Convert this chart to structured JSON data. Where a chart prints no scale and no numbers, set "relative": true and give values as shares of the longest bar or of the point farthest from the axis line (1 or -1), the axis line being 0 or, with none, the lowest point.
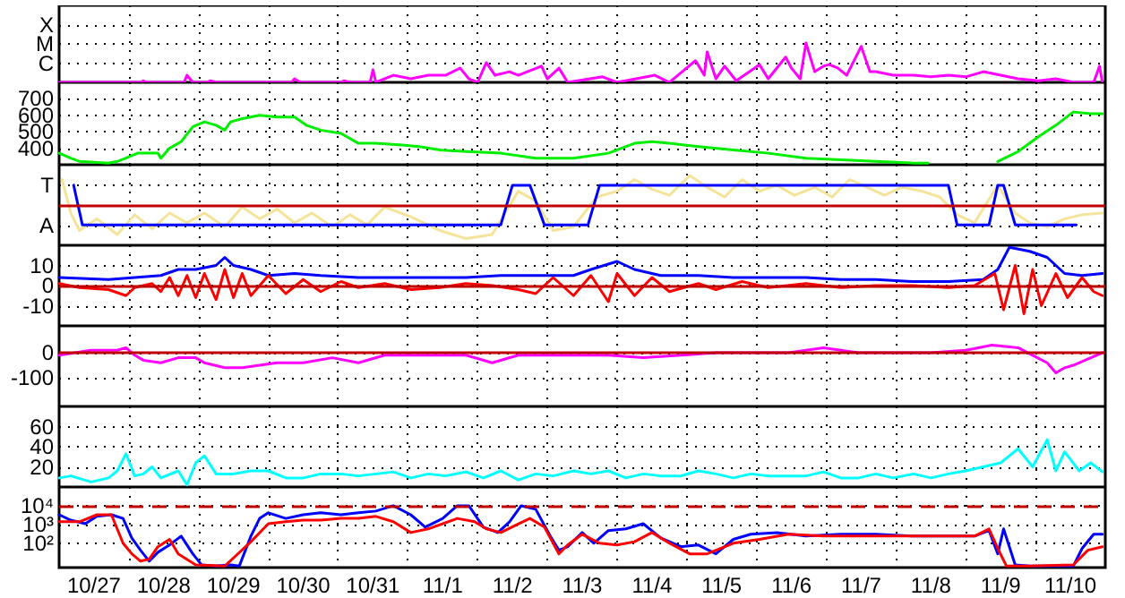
{
  "chart_data": [
    {
      "type": "line",
      "relative": true,
      "xlim": [
        "--10-27",
        "--11-11"
      ],
      "grid": true,
      "marker": "none",
      "tick_labels": "y",
      "xticks": [
        {
          "value": "--10-28",
          "label": null
        },
        {
          "value": "--10-29",
          "label": null
        },
        {
          "value": "--10-30",
          "label": null
        },
        {
          "value": "--10-31",
          "label": null
        },
        {
          "value": "--11-01",
          "label": null
        },
        {
          "value": "--11-02",
          "label": null
        },
        {
          "value": "--11-03",
          "label": null
        },
        {
          "value": "--11-04",
          "label": null
        },
        {
          "value": "--11-05",
          "label": null
        },
        {
          "value": "--11-06",
          "label": null
        },
        {
          "value": "--11-07",
          "label": null
        },
        {
          "value": "--11-08",
          "label": null
        },
        {
          "value": "--11-09",
          "label": null
        },
        {
          "value": "--11-10",
          "label": null
        }
      ],
      "annotations": [
        "C",
        "M",
        "X"
      ],
      "series": [
        {
          "color": "#ff00ff",
          "x": [
            "--10-27T00:00",
            "--10-28T04:00",
            "--10-28T05:00",
            "--10-28T06:00",
            "--10-28T19:00",
            "--10-28T20:00",
            "--10-28T22:00",
            "--10-29T03:00",
            "--10-29T04:00",
            "--10-29T06:00",
            "--10-30T08:00",
            "--10-30T09:00",
            "--10-30T11:00",
            "--10-31T01:00",
            "--10-31T02:00",
            "--10-31T04:00",
            "--10-31T11:00",
            "--10-31T12:00",
            "--10-31T13:00",
            "--10-31T19:00",
            "--11-01T01:00",
            "--11-01T07:00",
            "--11-01T13:00",
            "--11-01T18:00",
            "--11-01T21:00",
            "--11-02T00:00",
            "--11-02T03:00",
            "--11-02T06:00",
            "--11-02T11:00",
            "--11-02T14:00",
            "--11-02T22:00",
            "--11-03T00:00",
            "--11-03T04:00",
            "--11-03T07:00",
            "--11-03T19:00",
            "--11-04T00:00",
            "--11-04T13:00",
            "--11-04T18:00",
            "--11-05T03:00",
            "--11-05T06:00",
            "--11-05T07:00",
            "--11-05T10:00",
            "--11-05T13:00",
            "--11-05T17:00",
            "--11-06T01:00",
            "--11-06T04:00",
            "--11-06T10:00",
            "--11-06T12:00",
            "--11-06T15:00",
            "--11-06T17:00",
            "--11-06T20:00",
            "--11-06T23:00",
            "--11-07T01:00",
            "--11-07T04:00",
            "--11-07T07:00",
            "--11-07T12:00",
            "--11-07T15:00",
            "--11-07T17:00",
            "--11-07T23:00",
            "--11-08T06:00",
            "--11-08T12:00",
            "--11-08T18:00",
            "--11-09T00:00",
            "--11-09T06:00",
            "--11-09T12:00",
            "--11-09T18:00",
            "--11-10T01:00",
            "--11-10T07:00",
            "--11-10T13:00",
            "--11-10T20:00",
            "--11-10T22:00",
            "--11-10T23:00"
          ],
          "values": [
            0,
            0,
            0.04,
            0,
            0,
            0.18,
            0,
            0,
            0.04,
            0,
            0,
            0.09,
            0,
            0,
            0.04,
            0,
            0,
            0.32,
            0,
            0.18,
            0.09,
            0.18,
            0.18,
            0.36,
            0.09,
            0,
            0.5,
            0.18,
            0.27,
            0.18,
            0.41,
            0.09,
            0.36,
            0,
            0.14,
            0,
            0.18,
            0,
            0.55,
            0.18,
            0.77,
            0.09,
            0.41,
            0.04,
            0.45,
            0.09,
            0.64,
            0.36,
            0.09,
            1,
            0.27,
            0.41,
            0.45,
            0.36,
            0.18,
            0.91,
            0.27,
            0.27,
            0.18,
            0.18,
            0.14,
            0.18,
            0.14,
            0.27,
            0.18,
            0.09,
            0.04,
            0.09,
            0,
            0,
            0.41,
            0
          ]
        }
      ]
    },
    {
      "type": "line",
      "xlim": [
        "--10-27",
        "--11-11"
      ],
      "ylim": [
        300,
        800
      ],
      "grid": true,
      "marker": "none",
      "tick_labels": "y",
      "xticks": [
        {
          "value": "--10-28",
          "label": null
        },
        {
          "value": "--10-29",
          "label": null
        },
        {
          "value": "--10-30",
          "label": null
        },
        {
          "value": "--10-31",
          "label": null
        },
        {
          "value": "--11-01",
          "label": null
        },
        {
          "value": "--11-02",
          "label": null
        },
        {
          "value": "--11-03",
          "label": null
        },
        {
          "value": "--11-04",
          "label": null
        },
        {
          "value": "--11-05",
          "label": null
        },
        {
          "value": "--11-06",
          "label": null
        },
        {
          "value": "--11-07",
          "label": null
        },
        {
          "value": "--11-08",
          "label": null
        },
        {
          "value": "--11-09",
          "label": null
        },
        {
          "value": "--11-10",
          "label": null
        }
      ],
      "yticks": [
        400,
        500,
        600,
        700
      ],
      "series": [
        {
          "color": "#00ee00",
          "x": [
            "--10-27T00:00",
            "--10-27T04:00",
            "--10-27T07:00",
            "--10-27T17:00",
            "--10-27T20:00",
            "--10-27T23:00",
            "--10-28T03:00",
            "--10-28T10:00",
            "--10-28T11:00",
            "--10-28T14:00",
            "--10-28T18:00",
            "--10-28T22:00",
            "--10-29T02:00",
            "--10-29T06:00",
            "--10-29T09:00",
            "--10-29T11:00",
            "--10-29T15:00",
            "--10-29T21:00",
            "--10-30T03:00",
            "--10-30T09:00",
            "--10-30T13:00",
            "--10-30T18:00",
            "--10-31T01:00",
            "--10-31T07:00",
            "--10-31T13:00",
            "--10-31T22:00",
            "--11-01T04:00",
            "--11-01T11:00",
            "--11-01T20:00",
            "--11-02T08:00",
            "--11-02T20:00",
            "--11-03T09:00",
            "--11-03T21:00",
            "--11-04T06:00",
            "--11-04T12:00",
            "--11-04T18:00",
            "--11-05T04:00",
            "--11-05T16:00",
            "--11-06T04:00",
            "--11-06T17:00",
            "--11-07T05:00",
            "--11-07T17:00",
            "--11-08T06:00",
            "--11-08T11:00",
            "--11-08T23:00",
            "--11-09T11:00",
            "--11-09T18:00",
            "--11-10T01:00",
            "--11-10T07:00",
            "--11-10T13:00",
            "--11-10T19:00",
            "--11-10T23:00"
          ],
          "values": [
            370,
            340,
            320,
            310,
            320,
            340,
            370,
            370,
            340,
            400,
            440,
            530,
            560,
            540,
            510,
            560,
            580,
            600,
            590,
            590,
            540,
            510,
            490,
            430,
            430,
            420,
            410,
            390,
            380,
            370,
            340,
            340,
            370,
            430,
            440,
            430,
            410,
            390,
            370,
            340,
            330,
            320,
            310,
            310,
            null,
            320,
            380,
            470,
            540,
            620,
            610,
            610
          ]
        }
      ]
    },
    {
      "type": "line",
      "relative": true,
      "xlim": [
        "--10-27",
        "--11-11"
      ],
      "grid": true,
      "marker": "none",
      "tick_labels": "y",
      "xticks": [
        {
          "value": "--10-28",
          "label": null
        },
        {
          "value": "--10-29",
          "label": null
        },
        {
          "value": "--10-30",
          "label": null
        },
        {
          "value": "--10-31",
          "label": null
        },
        {
          "value": "--11-01",
          "label": null
        },
        {
          "value": "--11-02",
          "label": null
        },
        {
          "value": "--11-03",
          "label": null
        },
        {
          "value": "--11-04",
          "label": null
        },
        {
          "value": "--11-05",
          "label": null
        },
        {
          "value": "--11-06",
          "label": null
        },
        {
          "value": "--11-07",
          "label": null
        },
        {
          "value": "--11-08",
          "label": null
        },
        {
          "value": "--11-09",
          "label": null
        },
        {
          "value": "--11-10",
          "label": null
        }
      ],
      "annotations": [
        "A",
        "T"
      ],
      "ref_lines": [
        {
          "axis": "y",
          "value": 0,
          "color": "#c00000"
        }
      ],
      "series": [
        {
          "color": "#f5e39a",
          "x": [
            "--10-27T01:00",
            "--10-27T04:00",
            "--10-27T07:00",
            "--10-27T13:00",
            "--10-27T20:00",
            "--10-28T02:00",
            "--10-28T08:00",
            "--10-28T14:00",
            "--10-28T20:00",
            "--10-29T02:00",
            "--10-29T09:00",
            "--10-29T15:00",
            "--10-29T21:00",
            "--10-30T03:00",
            "--10-30T09:00",
            "--10-30T15:00",
            "--10-30T22:00",
            "--10-31T04:00",
            "--10-31T10:00",
            "--10-31T16:00",
            "--11-01T01:00",
            "--11-01T11:00",
            "--11-01T20:00",
            "--11-02T05:00",
            "--11-02T14:00",
            "--11-02T20:00",
            "--11-03T02:00",
            "--11-03T09:00",
            "--11-03T17:00",
            "--11-04T00:00",
            "--11-04T06:00",
            "--11-04T12:00",
            "--11-04T18:00",
            "--11-05T01:00",
            "--11-05T07:00",
            "--11-05T13:00",
            "--11-05T19:00",
            "--11-06T01:00",
            "--11-06T07:00",
            "--11-06T13:00",
            "--11-06T20:00",
            "--11-07T02:00",
            "--11-07T08:00",
            "--11-07T14:00",
            "--11-07T20:00",
            "--11-08T02:00",
            "--11-08T09:00",
            "--11-08T15:00",
            "--11-08T21:00",
            "--11-09T03:00",
            "--11-09T11:00",
            "--11-09T17:00",
            "--11-09T22:00",
            "--11-10T04:00",
            "--11-10T10:00",
            "--11-10T16:00",
            "--11-10T23:00"
          ],
          "values": [
            0.76,
            -0.24,
            -0.76,
            -0.41,
            -0.88,
            -0.29,
            -0.71,
            -0.24,
            -0.53,
            -0.24,
            -0.65,
            -0.06,
            -0.41,
            -0.12,
            -0.53,
            -0.24,
            -0.65,
            -0.29,
            -0.59,
            -0.06,
            -0.35,
            -0.76,
            -1,
            -0.88,
            0.41,
            0.12,
            -0.76,
            -0.65,
            0.24,
            0.41,
            0.76,
            0.47,
            0.29,
            0.88,
            0.53,
            0.24,
            0.76,
            0.41,
            0.59,
            0.29,
            0.53,
            0.24,
            0.76,
            0.53,
            0.29,
            0.53,
            0.41,
            0.24,
            -0.29,
            -0.53,
            0.59,
            -0.24,
            -0.53,
            -0.65,
            -0.41,
            -0.29,
            -0.24
          ]
        },
        {
          "color": "#0000ff",
          "x": [
            "--10-27T05:00",
            "--10-27T08:00",
            "--11-02T08:00",
            "--11-02T12:00",
            "--11-02T18:00",
            "--11-02T23:00",
            "--11-03T14:00",
            "--11-03T18:00",
            "--11-08T18:00",
            "--11-08T21:00",
            "--11-09T08:00",
            "--11-09T11:00",
            "--11-09T13:00",
            "--11-09T17:00",
            "--11-10T14:00"
          ],
          "values": [
            0.59,
            -0.59,
            -0.59,
            0.59,
            0.59,
            -0.59,
            -0.59,
            0.59,
            0.59,
            -0.59,
            -0.59,
            0.59,
            0.59,
            -0.59,
            -0.59
          ]
        }
      ]
    },
    {
      "type": "line",
      "xlim": [
        "--10-27",
        "--11-11"
      ],
      "ylim": [
        -20,
        20
      ],
      "grid": true,
      "marker": "none",
      "tick_labels": "y",
      "xticks": [
        {
          "value": "--10-28",
          "label": null
        },
        {
          "value": "--10-29",
          "label": null
        },
        {
          "value": "--10-30",
          "label": null
        },
        {
          "value": "--10-31",
          "label": null
        },
        {
          "value": "--11-01",
          "label": null
        },
        {
          "value": "--11-02",
          "label": null
        },
        {
          "value": "--11-03",
          "label": null
        },
        {
          "value": "--11-04",
          "label": null
        },
        {
          "value": "--11-05",
          "label": null
        },
        {
          "value": "--11-06",
          "label": null
        },
        {
          "value": "--11-07",
          "label": null
        },
        {
          "value": "--11-08",
          "label": null
        },
        {
          "value": "--11-09",
          "label": null
        },
        {
          "value": "--11-10",
          "label": null
        }
      ],
      "yticks": [
        -10,
        0,
        10
      ],
      "ref_lines": [
        {
          "axis": "y",
          "value": 0,
          "color": "#c00000"
        }
      ],
      "series": [
        {
          "color": "#0000ff",
          "x": [
            "--10-27T00:00",
            "--10-27T17:00",
            "--10-28T11:00",
            "--10-28T17:00",
            "--10-28T23:00",
            "--10-29T06:00",
            "--10-29T09:00",
            "--10-29T12:00",
            "--10-29T18:00",
            "--10-30T00:00",
            "--10-30T09:00",
            "--10-30T18:00",
            "--10-31T07:00",
            "--10-31T19:00",
            "--11-01T07:00",
            "--11-01T20:00",
            "--11-02T08:00",
            "--11-02T20:00",
            "--11-03T09:00",
            "--11-03T15:00",
            "--11-04T00:00",
            "--11-04T06:00",
            "--11-04T15:00",
            "--11-05T04:00",
            "--11-05T16:00",
            "--11-06T04:00",
            "--11-06T17:00",
            "--11-07T05:00",
            "--11-07T17:00",
            "--11-08T06:00",
            "--11-08T18:00",
            "--11-09T06:00",
            "--11-09T11:00",
            "--11-09T15:00",
            "--11-09T22:00",
            "--11-10T04:00",
            "--11-10T10:00",
            "--11-10T16:00",
            "--11-10T23:00"
          ],
          "values": [
            4,
            3,
            5,
            8,
            8,
            10,
            14,
            10,
            8,
            5,
            6,
            5,
            4,
            4,
            4,
            4,
            5,
            5,
            5,
            8,
            12,
            8,
            5,
            5,
            4,
            4,
            4,
            3,
            3,
            2,
            2,
            3,
            8,
            19,
            17,
            14,
            6,
            5,
            6
          ]
        },
        {
          "color": "#ff0000",
          "x": [
            "--10-27T00:00",
            "--10-27T07:00",
            "--10-27T17:00",
            "--10-27T23:00",
            "--10-28T02:00",
            "--10-28T08:00",
            "--10-28T11:00",
            "--10-28T14:00",
            "--10-28T17:00",
            "--10-28T20:00",
            "--10-28T23:00",
            "--10-29T02:00",
            "--10-29T06:00",
            "--10-29T09:00",
            "--10-29T12:00",
            "--10-29T15:00",
            "--10-29T18:00",
            "--10-30T00:00",
            "--10-30T06:00",
            "--10-30T12:00",
            "--10-30T18:00",
            "--10-31T01:00",
            "--10-31T07:00",
            "--10-31T16:00",
            "--11-01T01:00",
            "--11-01T11:00",
            "--11-01T20:00",
            "--11-02T05:00",
            "--11-02T14:00",
            "--11-02T20:00",
            "--11-03T02:00",
            "--11-03T09:00",
            "--11-03T15:00",
            "--11-03T21:00",
            "--11-04T00:00",
            "--11-04T06:00",
            "--11-04T12:00",
            "--11-04T18:00",
            "--11-05T04:00",
            "--11-05T10:00",
            "--11-05T19:00",
            "--11-06T04:00",
            "--11-06T17:00",
            "--11-07T05:00",
            "--11-07T17:00",
            "--11-08T06:00",
            "--11-08T18:00",
            "--11-09T03:00",
            "--11-09T10:00",
            "--11-09T13:00",
            "--11-09T17:00",
            "--11-09T20:00",
            "--11-09T23:00",
            "--11-10T02:00",
            "--11-10T07:00",
            "--11-10T11:00",
            "--11-10T16:00",
            "--11-10T20:00",
            "--11-10T23:00"
          ],
          "values": [
            1,
            -1,
            -2,
            -5,
            -1,
            1,
            -3,
            4,
            -5,
            5,
            -6,
            6,
            -7,
            8,
            -6,
            6,
            -5,
            5,
            -4,
            3,
            -3,
            2,
            -1,
            1,
            -2,
            -1,
            1,
            0,
            -2,
            -4,
            4,
            -5,
            5,
            -8,
            6,
            -5,
            4,
            -3,
            1,
            -2,
            2,
            -1,
            1,
            -1,
            0,
            0,
            -1,
            0,
            6,
            -12,
            10,
            -14,
            8,
            -10,
            6,
            -6,
            4,
            -3,
            -5
          ]
        }
      ]
    },
    {
      "type": "line",
      "xlim": [
        "--10-27",
        "--11-11"
      ],
      "ylim": [
        -214,
        107
      ],
      "grid": true,
      "marker": "none",
      "tick_labels": "y",
      "xticks": [
        {
          "value": "--10-28",
          "label": null
        },
        {
          "value": "--10-29",
          "label": null
        },
        {
          "value": "--10-30",
          "label": null
        },
        {
          "value": "--10-31",
          "label": null
        },
        {
          "value": "--11-01",
          "label": null
        },
        {
          "value": "--11-02",
          "label": null
        },
        {
          "value": "--11-03",
          "label": null
        },
        {
          "value": "--11-04",
          "label": null
        },
        {
          "value": "--11-05",
          "label": null
        },
        {
          "value": "--11-06",
          "label": null
        },
        {
          "value": "--11-07",
          "label": null
        },
        {
          "value": "--11-08",
          "label": null
        },
        {
          "value": "--11-09",
          "label": null
        },
        {
          "value": "--11-10",
          "label": null
        }
      ],
      "yticks": [
        -100,
        0
      ],
      "ref_lines": [
        {
          "axis": "y",
          "value": 0,
          "color": "#c00000"
        }
      ],
      "series": [
        {
          "color": "#ff00ff",
          "x": [
            "--10-27T00:00",
            "--10-27T11:00",
            "--10-27T20:00",
            "--10-27T23:00",
            "--10-28T02:00",
            "--10-28T05:00",
            "--10-28T11:00",
            "--10-28T17:00",
            "--10-28T23:00",
            "--10-29T02:00",
            "--10-29T09:00",
            "--10-29T15:00",
            "--10-29T21:00",
            "--10-30T03:00",
            "--10-30T12:00",
            "--10-30T22:00",
            "--10-31T07:00",
            "--10-31T16:00",
            "--11-01T01:00",
            "--11-01T11:00",
            "--11-01T20:00",
            "--11-02T05:00",
            "--11-02T14:00",
            "--11-02T23:00",
            "--11-03T09:00",
            "--11-03T21:00",
            "--11-04T09:00",
            "--11-04T22:00",
            "--11-05T10:00",
            "--11-05T22:00",
            "--11-06T11:00",
            "--11-06T23:00",
            "--11-07T11:00",
            "--11-07T23:00",
            "--11-08T12:00",
            "--11-09T00:00",
            "--11-09T09:00",
            "--11-09T18:00",
            "--11-09T23:00",
            "--11-10T04:00",
            "--11-10T07:00",
            "--11-10T10:00",
            "--11-10T13:00",
            "--11-10T19:00",
            "--11-10T23:00"
          ],
          "values": [
            -10,
            10,
            10,
            20,
            -10,
            -30,
            -40,
            -20,
            -20,
            -40,
            -60,
            -60,
            -50,
            -40,
            -40,
            -20,
            -40,
            -10,
            -10,
            -10,
            -10,
            -40,
            -10,
            -10,
            -10,
            -10,
            -20,
            -10,
            0,
            0,
            0,
            20,
            0,
            0,
            0,
            10,
            30,
            20,
            -10,
            -40,
            -80,
            -60,
            -50,
            -20,
            0
          ]
        }
      ]
    },
    {
      "type": "line",
      "xlim": [
        "--10-27",
        "--11-11"
      ],
      "ylim": [
        0,
        80
      ],
      "grid": true,
      "marker": "none",
      "tick_labels": "y",
      "xticks": [
        {
          "value": "--10-28",
          "label": null
        },
        {
          "value": "--10-29",
          "label": null
        },
        {
          "value": "--10-30",
          "label": null
        },
        {
          "value": "--10-31",
          "label": null
        },
        {
          "value": "--11-01",
          "label": null
        },
        {
          "value": "--11-02",
          "label": null
        },
        {
          "value": "--11-03",
          "label": null
        },
        {
          "value": "--11-04",
          "label": null
        },
        {
          "value": "--11-05",
          "label": null
        },
        {
          "value": "--11-06",
          "label": null
        },
        {
          "value": "--11-07",
          "label": null
        },
        {
          "value": "--11-08",
          "label": null
        },
        {
          "value": "--11-09",
          "label": null
        },
        {
          "value": "--11-10",
          "label": null
        }
      ],
      "yticks": [
        20,
        40,
        60
      ],
      "series": [
        {
          "color": "#00ffff",
          "x": [
            "--10-27T00:00",
            "--10-27T04:00",
            "--10-27T11:00",
            "--10-27T17:00",
            "--10-27T20:00",
            "--10-27T23:00",
            "--10-28T02:00",
            "--10-28T05:00",
            "--10-28T08:00",
            "--10-28T11:00",
            "--10-28T17:00",
            "--10-28T20:00",
            "--10-28T23:00",
            "--10-29T02:00",
            "--10-29T06:00",
            "--10-29T12:00",
            "--10-29T18:00",
            "--10-30T00:00",
            "--10-30T06:00",
            "--10-30T12:00",
            "--10-30T18:00",
            "--10-31T01:00",
            "--10-31T07:00",
            "--10-31T13:00",
            "--10-31T19:00",
            "--11-01T01:00",
            "--11-01T07:00",
            "--11-01T13:00",
            "--11-01T20:00",
            "--11-02T02:00",
            "--11-02T08:00",
            "--11-02T14:00",
            "--11-02T20:00",
            "--11-03T02:00",
            "--11-03T09:00",
            "--11-03T15:00",
            "--11-03T21:00",
            "--11-04T03:00",
            "--11-04T09:00",
            "--11-04T15:00",
            "--11-04T22:00",
            "--11-05T04:00",
            "--11-05T10:00",
            "--11-05T16:00",
            "--11-05T22:00",
            "--11-06T04:00",
            "--11-06T11:00",
            "--11-06T17:00",
            "--11-06T23:00",
            "--11-07T05:00",
            "--11-07T11:00",
            "--11-07T17:00",
            "--11-07T23:00",
            "--11-08T06:00",
            "--11-08T12:00",
            "--11-08T18:00",
            "--11-09T00:00",
            "--11-09T06:00",
            "--11-09T12:00",
            "--11-09T18:00",
            "--11-09T23:00",
            "--11-10T04:00",
            "--11-10T07:00",
            "--11-10T10:00",
            "--11-10T15:00",
            "--11-10T19:00",
            "--11-10T23:00"
          ],
          "values": [
            9,
            11,
            5,
            9,
            16,
            33,
            11,
            13,
            20,
            9,
            16,
            2,
            24,
            31,
            13,
            13,
            16,
            16,
            9,
            9,
            13,
            13,
            11,
            13,
            15,
            9,
            13,
            11,
            15,
            9,
            16,
            7,
            13,
            11,
            16,
            13,
            16,
            9,
            13,
            11,
            11,
            16,
            13,
            9,
            13,
            11,
            11,
            11,
            15,
            9,
            9,
            13,
            9,
            13,
            9,
            13,
            16,
            20,
            24,
            38,
            20,
            47,
            16,
            35,
            16,
            24,
            15
          ]
        }
      ]
    },
    {
      "type": "line",
      "xlim": [
        "--10-27",
        "--11-11"
      ],
      "ylim": [
        5,
        100000
      ],
      "log": "y",
      "grid": true,
      "marker": "none",
      "xticks": [
        {
          "value": "--10-27T12:00",
          "label": "10/27"
        },
        {
          "value": "--10-28",
          "label": null
        },
        {
          "value": "--10-28T12:00",
          "label": "10/28"
        },
        {
          "value": "--10-29",
          "label": null
        },
        {
          "value": "--10-29T12:00",
          "label": "10/29"
        },
        {
          "value": "--10-30",
          "label": null
        },
        {
          "value": "--10-30T12:00",
          "label": "10/30"
        },
        {
          "value": "--10-31",
          "label": null
        },
        {
          "value": "--10-31T12:00",
          "label": "10/31"
        },
        {
          "value": "--11-01",
          "label": null
        },
        {
          "value": "--11-01T12:00",
          "label": "11/1"
        },
        {
          "value": "--11-02",
          "label": null
        },
        {
          "value": "--11-02T12:00",
          "label": "11/2"
        },
        {
          "value": "--11-03",
          "label": null
        },
        {
          "value": "--11-03T12:00",
          "label": "11/3"
        },
        {
          "value": "--11-04",
          "label": null
        },
        {
          "value": "--11-04T12:00",
          "label": "11/4"
        },
        {
          "value": "--11-05",
          "label": null
        },
        {
          "value": "--11-05T12:00",
          "label": "11/5"
        },
        {
          "value": "--11-06",
          "label": null
        },
        {
          "value": "--11-06T12:00",
          "label": "11/6"
        },
        {
          "value": "--11-07",
          "label": null
        },
        {
          "value": "--11-07T12:00",
          "label": "11/7"
        },
        {
          "value": "--11-08",
          "label": null
        },
        {
          "value": "--11-08T12:00",
          "label": "11/8"
        },
        {
          "value": "--11-09",
          "label": null
        },
        {
          "value": "--11-09T12:00",
          "label": "11/9"
        },
        {
          "value": "--11-10",
          "label": null
        },
        {
          "value": "--11-10T12:00",
          "label": "11/10"
        }
      ],
      "yticks": [
        {
          "value": 100,
          "label": "10²"
        },
        {
          "value": 1000,
          "label": "10³"
        },
        {
          "value": 10000,
          "label": "10⁴"
        }
      ],
      "ref_lines": [
        {
          "axis": "y",
          "value": 10000,
          "color": "#c00000",
          "line_style": "dashed"
        }
      ],
      "series": [
        {
          "color": "#0000ff",
          "x": [
            "--10-27T00:00",
            "--10-27T04:00",
            "--10-27T09:00",
            "--10-27T13:00",
            "--10-27T18:00",
            "--10-27T22:00",
            "--10-28T01:00",
            "--10-28T04:00",
            "--10-28T07:00",
            "--10-28T10:00",
            "--10-28T14:00",
            "--10-28T18:00",
            "--10-28T22:00",
            "--10-29T01:00",
            "--10-29T06:00",
            "--10-29T11:00",
            "--10-29T14:00",
            "--10-29T18:00",
            "--10-29T21:00",
            "--10-30T00:00",
            "--10-30T06:00",
            "--10-30T12:00",
            "--10-30T18:00",
            "--10-31T01:00",
            "--10-31T07:00",
            "--10-31T13:00",
            "--10-31T19:00",
            "--11-01T01:00",
            "--11-01T06:00",
            "--11-01T12:00",
            "--11-01T17:00",
            "--11-01T21:00",
            "--11-02T02:00",
            "--11-02T07:00",
            "--11-02T11:00",
            "--11-02T15:00",
            "--11-02T20:00",
            "--11-03T01:00",
            "--11-03T04:00",
            "--11-03T07:00",
            "--11-03T12:00",
            "--11-03T16:00",
            "--11-03T21:00",
            "--11-04T03:00",
            "--11-04T09:00",
            "--11-04T15:00",
            "--11-04T22:00",
            "--11-05T04:00",
            "--11-05T10:00",
            "--11-05T16:00",
            "--11-05T22:00",
            "--11-06T07:00",
            "--11-06T17:00",
            "--11-07T05:00",
            "--11-07T17:00",
            "--11-08T06:00",
            "--11-08T18:00",
            "--11-09T03:00",
            "--11-09T08:00",
            "--11-09T11:00",
            "--11-09T13:00",
            "--11-09T17:00",
            "--11-09T22:00",
            "--11-10T13:00",
            "--11-10T16:00",
            "--11-10T20:00",
            "--11-10T23:00"
          ],
          "values": [
            3300,
            1700,
            1100,
            2700,
            3300,
            2100,
            190,
            42,
            11,
            33,
            80,
            240,
            27,
            7,
            6,
            7,
            6,
            240,
            2100,
            4200,
            2100,
            3300,
            4200,
            3300,
            4200,
            5200,
            10000,
            3300,
            720,
            2100,
            10000,
            10000,
            720,
            370,
            1400,
            10000,
            6500,
            240,
            42,
            65,
            370,
            100,
            470,
            580,
            1100,
            190,
            65,
            80,
            27,
            160,
            300,
            370,
            240,
            300,
            300,
            240,
            240,
            240,
            470,
            27,
            580,
            7,
            6,
            6,
            52,
            300,
            300
          ]
        },
        {
          "color": "#ff0000",
          "x": [
            "--10-27T00:00",
            "--10-27T07:00",
            "--10-27T13:00",
            "--10-27T18:00",
            "--10-27T22:00",
            "--10-28T01:00",
            "--10-28T04:00",
            "--10-28T07:00",
            "--10-28T10:00",
            "--10-28T14:00",
            "--10-28T17:00",
            "--10-28T23:00",
            "--10-29T09:00",
            "--10-29T18:00",
            "--10-30T00:00",
            "--10-30T06:00",
            "--10-30T12:00",
            "--10-30T18:00",
            "--10-31T01:00",
            "--10-31T07:00",
            "--10-31T13:00",
            "--10-31T19:00",
            "--11-01T01:00",
            "--11-01T07:00",
            "--11-01T17:00",
            "--11-01T23:00",
            "--11-02T03:00",
            "--11-02T08:00",
            "--11-02T13:00",
            "--11-02T18:00",
            "--11-02T23:00",
            "--11-03T04:00",
            "--11-03T07:00",
            "--11-03T12:00",
            "--11-03T18:00",
            "--11-04T00:00",
            "--11-04T06:00",
            "--11-04T12:00",
            "--11-04T18:00",
            "--11-05T01:00",
            "--11-05T07:00",
            "--11-05T16:00",
            "--11-06T01:00",
            "--11-06T11:00",
            "--11-06T23:00",
            "--11-07T11:00",
            "--11-07T23:00",
            "--11-08T12:00",
            "--11-09T03:00",
            "--11-09T08:00",
            "--11-09T11:00",
            "--11-09T14:00",
            "--11-09T22:00",
            "--11-10T13:00",
            "--11-10T18:00",
            "--11-10T23:00"
          ],
          "values": [
            1400,
            1400,
            3300,
            3300,
            100,
            27,
            11,
            14,
            65,
            160,
            27,
            7,
            6,
            120,
            1100,
            1400,
            1700,
            1700,
            2100,
            2100,
            2700,
            1400,
            370,
            580,
            2100,
            1400,
            580,
            370,
            900,
            2100,
            720,
            27,
            80,
            300,
            100,
            80,
            120,
            370,
            100,
            27,
            27,
            100,
            160,
            300,
            240,
            240,
            240,
            240,
            240,
            580,
            52,
            6,
            6,
            7,
            42,
            65
          ]
        }
      ]
    }
  ]
}
